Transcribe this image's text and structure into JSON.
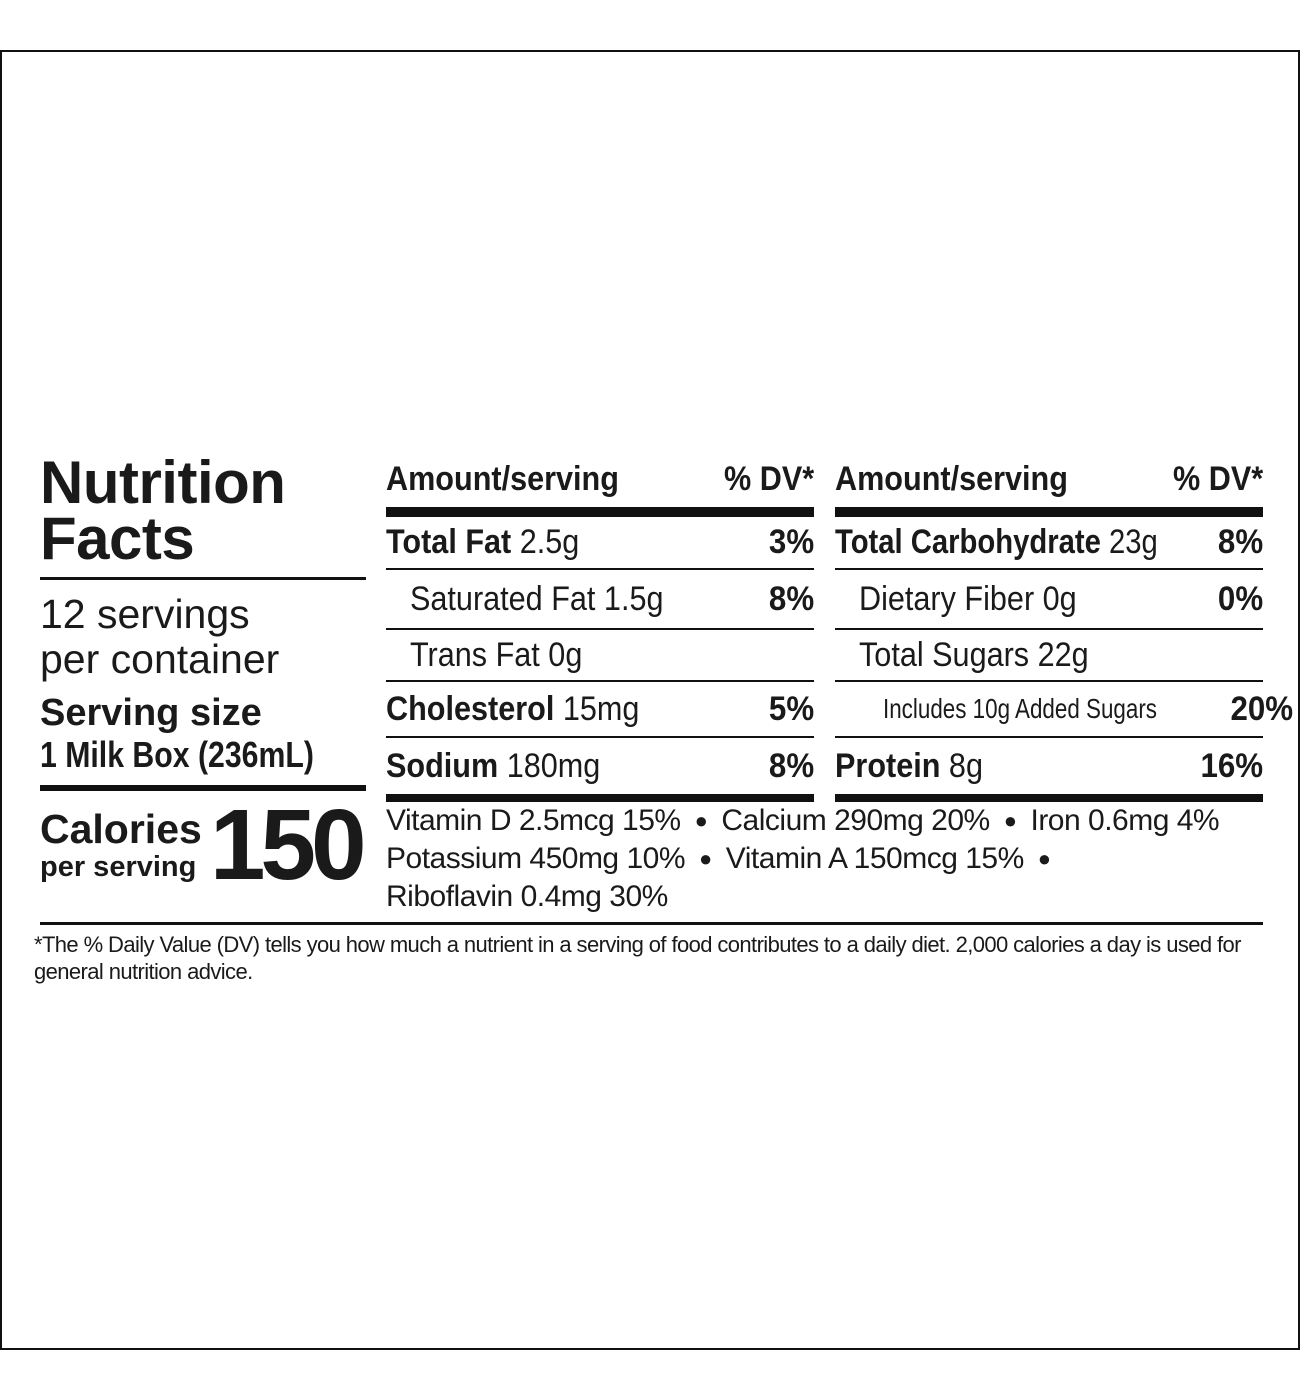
{
  "label": {
    "title_line1": "Nutrition",
    "title_line2": "Facts",
    "servings_line1": "12 servings",
    "servings_line2": "per container",
    "serving_size_label": "Serving size",
    "serving_size_value": "1 Milk Box (236mL)",
    "calories_label": "Calories",
    "calories_sub": "per serving",
    "calories_value": "150",
    "header_amount": "Amount/serving",
    "header_dv": "% DV*",
    "left_rows": [
      {
        "name": "Total Fat",
        "amount": "2.5g",
        "dv": "3%"
      },
      {
        "name": "Saturated Fat",
        "amount": "1.5g",
        "dv": "8%"
      },
      {
        "name": "Trans Fat",
        "amount": "0g",
        "dv": ""
      },
      {
        "name": "Cholesterol",
        "amount": "15mg",
        "dv": "5%"
      },
      {
        "name": "Sodium",
        "amount": "180mg",
        "dv": "8%"
      }
    ],
    "right_rows": [
      {
        "name": "Total Carbohydrate",
        "amount": "23g",
        "dv": "8%"
      },
      {
        "name": "Dietary Fiber",
        "amount": "0g",
        "dv": "0%"
      },
      {
        "name": "Total Sugars",
        "amount": "22g",
        "dv": ""
      },
      {
        "name": "Includes 10g Added Sugars",
        "amount": "",
        "dv": "20%"
      },
      {
        "name": "Protein",
        "amount": "8g",
        "dv": "16%"
      }
    ],
    "vitamins": [
      "Vitamin D 2.5mcg 15%",
      "Calcium 290mg 20%",
      "Iron 0.6mg 4%",
      "Potassium 450mg 10%",
      "Vitamin A 150mcg 15%",
      "Riboflavin 0.4mg 30%"
    ],
    "footnote": "*The % Daily Value (DV) tells you how much a nutrient in a serving of food contributes to a daily diet. 2,000 calories a day is used for general nutrition advice."
  }
}
